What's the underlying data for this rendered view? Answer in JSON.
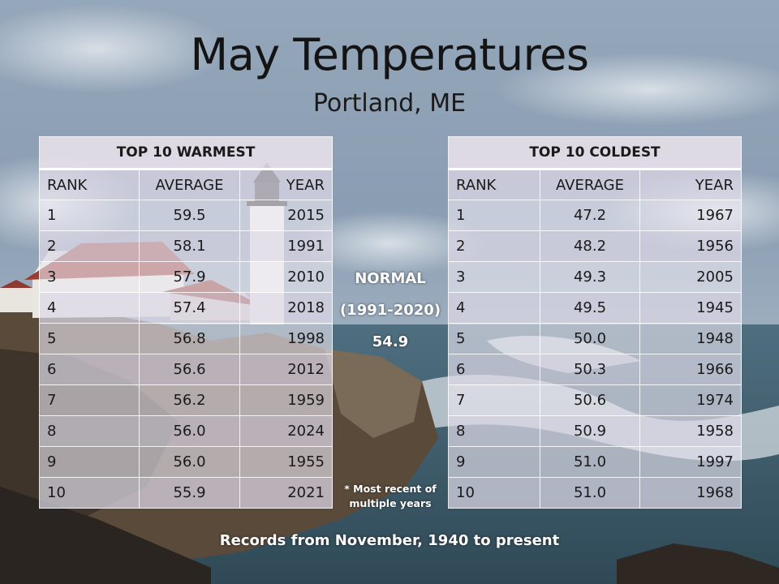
{
  "title": "May Temperatures",
  "subtitle": "Portland, ME",
  "warmest": {
    "heading": "TOP 10 WARMEST",
    "columns": [
      "RANK",
      "AVERAGE",
      "YEAR"
    ],
    "rows": [
      [
        "1",
        "59.5",
        "2015"
      ],
      [
        "2",
        "58.1",
        "1991"
      ],
      [
        "3",
        "57.9",
        "2010"
      ],
      [
        "4",
        "57.4",
        "2018"
      ],
      [
        "5",
        "56.8",
        "1998"
      ],
      [
        "6",
        "56.6",
        "2012"
      ],
      [
        "7",
        "56.2",
        "1959"
      ],
      [
        "8",
        "56.0",
        "2024"
      ],
      [
        "9",
        "56.0",
        "1955"
      ],
      [
        "10",
        "55.9",
        "2021"
      ]
    ]
  },
  "coldest": {
    "heading": "TOP 10 COLDEST",
    "columns": [
      "RANK",
      "AVERAGE",
      "YEAR"
    ],
    "rows": [
      [
        "1",
        "47.2",
        "1967"
      ],
      [
        "2",
        "48.2",
        "1956"
      ],
      [
        "3",
        "49.3",
        "2005"
      ],
      [
        "4",
        "49.5",
        "1945"
      ],
      [
        "5",
        "50.0",
        "1948"
      ],
      [
        "6",
        "50.3",
        "1966"
      ],
      [
        "7",
        "50.6",
        "1974"
      ],
      [
        "8",
        "50.9",
        "1958"
      ],
      [
        "9",
        "51.0",
        "1997"
      ],
      [
        "10",
        "51.0",
        "1968"
      ]
    ]
  },
  "normal": {
    "label": "NORMAL",
    "period": "(1991-2020)",
    "value": "54.9"
  },
  "footnote": "* Most recent of multiple years",
  "footer": "Records from November, 1940 to present",
  "icons": {
    "background": "lighthouse-coast-photo-icon"
  },
  "colors": {
    "sky": "#7e94ab",
    "sea": "#3d5866",
    "table_fill": "#e6e2ee",
    "footer_text": "#ffffff"
  }
}
